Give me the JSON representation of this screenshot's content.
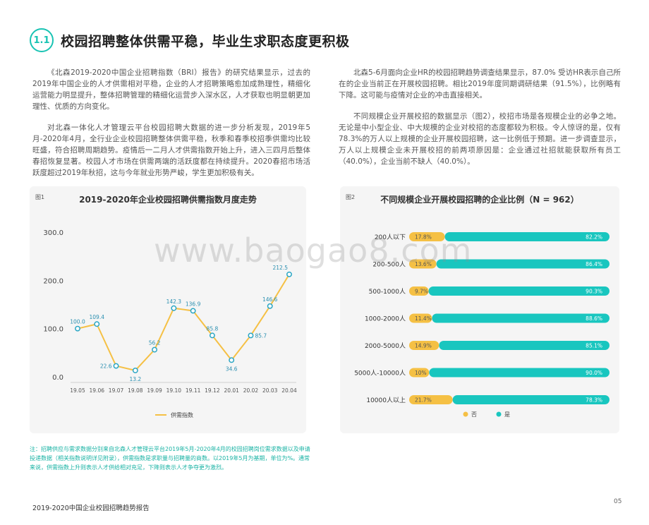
{
  "header": {
    "badge": "1.1",
    "title": "校园招聘整体供需平稳，毕业生求职态度更积极"
  },
  "left_paragraphs": [
    "《北森2019-2020中国企业招聘指数（BRI）报告》的研究结果显示，过去的2019年中国企业的人才供需相对平稳，企业的人才招聘策略愈加成熟理性，精细化运营能力明显提升，整体招聘管理的精细化运营步入深水区，人才获取也明显朝更加理性、优质的方向变化。",
    "对北森一体化人才管理云平台校园招聘大数据的进一步分析发现，2019年5月-2020年4月，全行业企业校园招聘整体供需平稳，秋季和春季校招季供需均比较旺盛，符合招聘周期趋势。疫情后一二月人才供需指数开始上升，进入三四月后整体春招恢复显著。校园人才市场在供需两端的活跃度都在持续提升。2020春招市场活跃度超过2019年秋招，这与今年就业形势严峻，学生更加积极有关。"
  ],
  "right_paragraphs": [
    "北森5-6月面向企业HR的校园招聘趋势调查结果显示，87.0% 受访HR表示自己所在的企业当前正在开展校园招聘。相比2019年度同期调研结果（91.5%），比例略有下降。这可能与疫情对企业的冲击直接相关。",
    "不同规模企业开展校招的数据显示（图2），校招市场是各规模企业的必争之地。无论是中小型企业、中大规模的企业对校招的态度都较为积极。令人惊讶的是，仅有78.3%的万人以上规模的企业开展校园招聘，这一比例低于预期。进一步调查显示，万人以上规模企业未开展校招的前两项原因是：企业通过社招就能获取所有员工（40.0%），企业当前不缺人（40.0%）。"
  ],
  "figure1": {
    "tag": "图1"
  },
  "figure2": {
    "tag": "图2"
  },
  "chart_data": [
    {
      "type": "line",
      "title": "2019-2020年企业校园招聘供需指数月度走势",
      "x": [
        "19.05",
        "19.06",
        "19.07",
        "19.08",
        "19.09",
        "19.10",
        "19.11",
        "19.12",
        "20.01",
        "20.02",
        "20.03",
        "20.04"
      ],
      "series": [
        {
          "name": "供需指数",
          "values": [
            100.0,
            109.4,
            22.6,
            13.2,
            56.2,
            142.3,
            136.9,
            85.8,
            34.6,
            85.7,
            146.6,
            212.5
          ]
        }
      ],
      "labels": [
        "100.0",
        "109.4",
        "22.6",
        "13.2",
        "56.2",
        "142.3",
        "136.9",
        "85.8",
        "34.6",
        "85.7",
        "146.6",
        "212.5"
      ],
      "yticks": [
        "300.0",
        "200.0",
        "100.0",
        "0.0"
      ],
      "ylim": [
        0,
        300
      ],
      "grid": false,
      "legend": "bottom",
      "colors": {
        "line": "#f5c044",
        "marker_edge": "#2aa6c4"
      }
    },
    {
      "type": "bar",
      "stacked": true,
      "orientation": "horizontal",
      "title": "不同规模企业开展校园招聘的企业比例（N = 962）",
      "categories": [
        "200人以下",
        "200-500人",
        "500-1000人",
        "1000-2000人",
        "2000-5000人",
        "5000人-10000人",
        "10000人以上"
      ],
      "series": [
        {
          "name": "否",
          "values": [
            17.8,
            13.6,
            9.7,
            11.4,
            14.9,
            10.0,
            21.7
          ],
          "labels": [
            "17.8%",
            "13.6%",
            "9.7%",
            "11.4%",
            "14.9%",
            "10%",
            "21.7%"
          ]
        },
        {
          "name": "是",
          "values": [
            82.2,
            86.4,
            90.3,
            88.6,
            85.1,
            90.0,
            78.3
          ],
          "labels": [
            "82.2%",
            "86.4%",
            "90.3%",
            "88.6%",
            "85.1%",
            "90.0%",
            "78.3%"
          ]
        }
      ],
      "legend": "bottom",
      "colors": {
        "no": "#f5c044",
        "yes": "#19c6bf"
      }
    }
  ],
  "note": "注：招聘供应与需求数据分别来自北森人才管理云平台2019年5月-2020年4月的校园招聘岗位需求数据以及申请投递数据（相关指数说明详见附录），供需指数是求职量与招聘量的商数。以2019年5月为基期，单位为%。通常来说，供需指数上升则表示人才供给相对充足，下降则表示人才争夺更为激烈。",
  "footer": {
    "report_title": "2019-2020中国企业校园招聘趋势报告",
    "page": "05"
  },
  "watermark": "www.baogao8.com"
}
